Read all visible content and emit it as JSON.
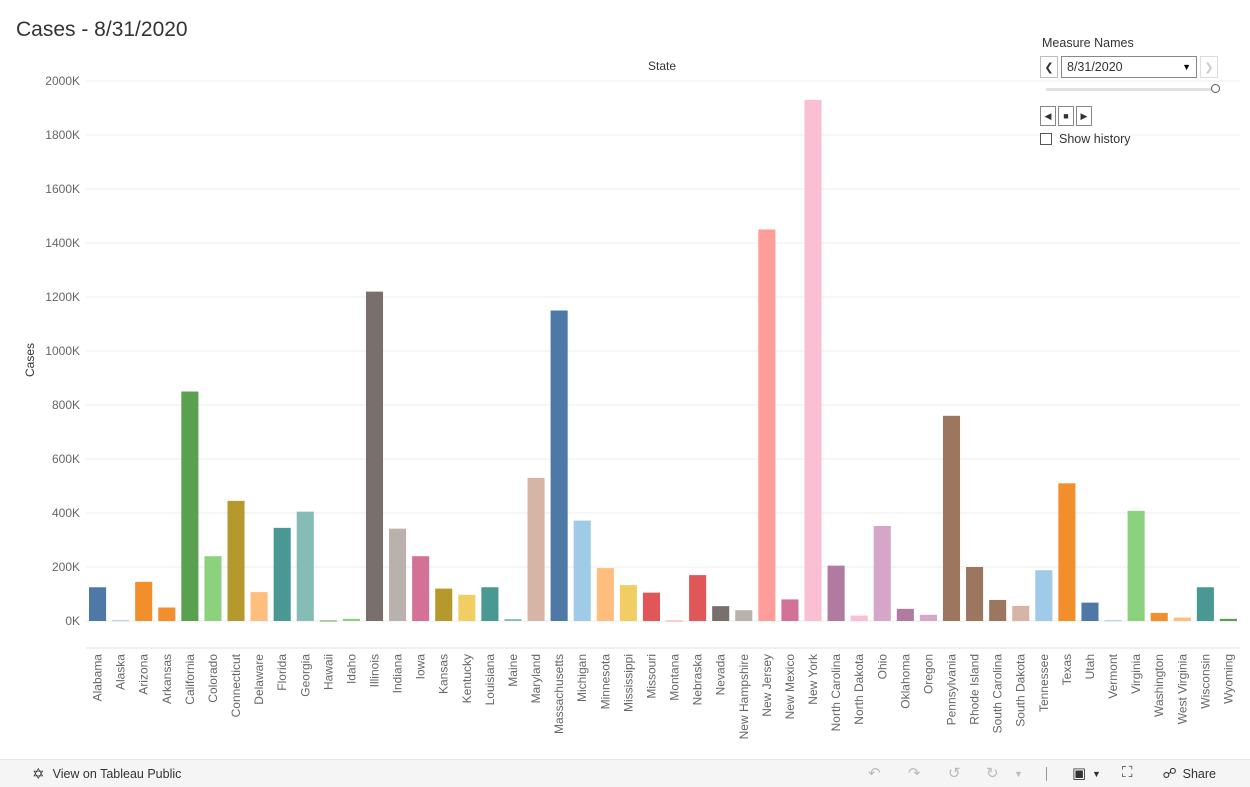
{
  "title": "Cases - 8/31/2020",
  "chart_data": {
    "type": "bar",
    "xlabel": "State",
    "ylabel": "Cases",
    "ylim": [
      0,
      2000000
    ],
    "yticks": [
      0,
      200000,
      400000,
      600000,
      800000,
      1000000,
      1200000,
      1400000,
      1600000,
      1800000,
      2000000
    ],
    "ytick_labels": [
      "0K",
      "200K",
      "400K",
      "600K",
      "800K",
      "1000K",
      "1200K",
      "1400K",
      "1600K",
      "1800K",
      "2000K"
    ],
    "grid": true,
    "categories": [
      "Alabama",
      "Alaska",
      "Arizona",
      "Arkansas",
      "California",
      "Colorado",
      "Connecticut",
      "Delaware",
      "Florida",
      "Georgia",
      "Hawaii",
      "Idaho",
      "Illinois",
      "Indiana",
      "Iowa",
      "Kansas",
      "Kentucky",
      "Louisiana",
      "Maine",
      "Maryland",
      "Massachusetts",
      "Michigan",
      "Minnesota",
      "Mississippi",
      "Missouri",
      "Montana",
      "Nebraska",
      "Nevada",
      "New Hampshire",
      "New Jersey",
      "New Mexico",
      "New York",
      "North Carolina",
      "North Dakota",
      "Ohio",
      "Oklahoma",
      "Oregon",
      "Pennsylvania",
      "Rhode Island",
      "South Carolina",
      "South Dakota",
      "Tennessee",
      "Texas",
      "Utah",
      "Vermont",
      "Virginia",
      "Washington",
      "West Virginia",
      "Wisconsin",
      "Wyoming"
    ],
    "values": [
      125000,
      3000,
      145000,
      50000,
      850000,
      240000,
      445000,
      107000,
      345000,
      405000,
      2000,
      8000,
      1220000,
      342000,
      240000,
      120000,
      97000,
      125000,
      7000,
      530000,
      1150000,
      372000,
      196000,
      133000,
      105000,
      2000,
      170000,
      55000,
      40000,
      1450000,
      80000,
      1930000,
      205000,
      20000,
      352000,
      45000,
      23000,
      760000,
      200000,
      78000,
      56000,
      188000,
      510000,
      68000,
      3000,
      408000,
      30000,
      13000,
      125000,
      8000
    ],
    "colors": [
      "#4e79a7",
      "#a0cbe8",
      "#f28e2b",
      "#f28e2b",
      "#59a14f",
      "#8cd17d",
      "#b6992d",
      "#ffbe7d",
      "#499894",
      "#86bcb6",
      "#59a14f",
      "#8cd17d",
      "#79706e",
      "#bab0ac",
      "#d37295",
      "#b6992d",
      "#f1ce63",
      "#499894",
      "#86bcb6",
      "#d7b5a6",
      "#4e79a7",
      "#a0cbe8",
      "#ffbe7d",
      "#f1ce63",
      "#e15759",
      "#ff9d9a",
      "#e15759",
      "#79706e",
      "#bab0ac",
      "#ff9d9a",
      "#d37295",
      "#fabfd2",
      "#b07aa1",
      "#fabfd2",
      "#d4a6c8",
      "#b07aa1",
      "#d4a6c8",
      "#9d7660",
      "#9d7660",
      "#9d7660",
      "#d7b5a6",
      "#a0cbe8",
      "#f28e2b",
      "#4e79a7",
      "#a0cbe8",
      "#8cd17d",
      "#f28e2b",
      "#ffbe7d",
      "#499894",
      "#59a14f"
    ]
  },
  "controls": {
    "title": "Measure Names",
    "selected_value": "8/31/2020",
    "show_history_label": "Show history"
  },
  "footer": {
    "view_link": "View on Tableau Public",
    "share_label": "Share"
  }
}
